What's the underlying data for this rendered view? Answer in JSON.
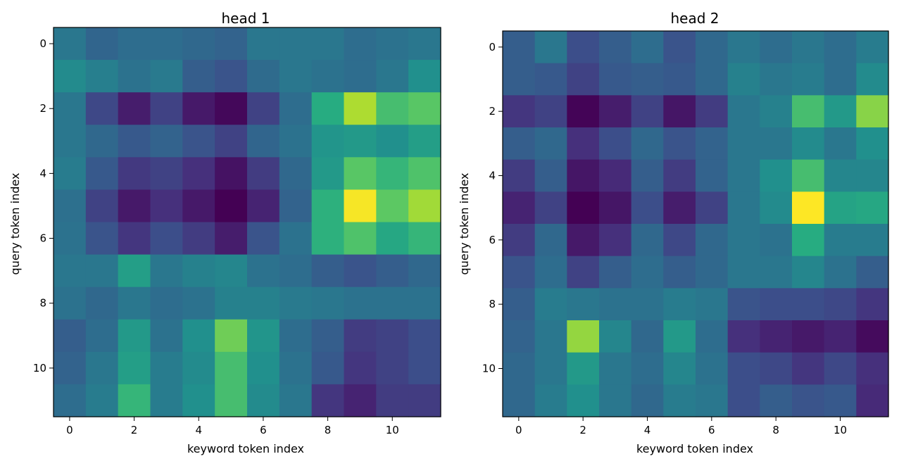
{
  "chart_data": [
    {
      "type": "heatmap",
      "title": "head 1",
      "xlabel": "keyword token index",
      "ylabel": "query token index",
      "xticks": [
        0,
        2,
        4,
        6,
        8,
        10
      ],
      "yticks": [
        0,
        2,
        4,
        6,
        8,
        10
      ],
      "colormap": "viridis",
      "vmin": 0,
      "vmax": 1,
      "values": [
        [
          0.4,
          0.33,
          0.36,
          0.36,
          0.34,
          0.32,
          0.4,
          0.4,
          0.4,
          0.36,
          0.38,
          0.4
        ],
        [
          0.48,
          0.43,
          0.38,
          0.41,
          0.3,
          0.26,
          0.35,
          0.4,
          0.38,
          0.36,
          0.4,
          0.5
        ],
        [
          0.4,
          0.22,
          0.08,
          0.2,
          0.07,
          0.02,
          0.2,
          0.36,
          0.62,
          0.88,
          0.7,
          0.74
        ],
        [
          0.4,
          0.34,
          0.28,
          0.32,
          0.26,
          0.2,
          0.33,
          0.38,
          0.52,
          0.54,
          0.5,
          0.56
        ],
        [
          0.42,
          0.28,
          0.17,
          0.2,
          0.14,
          0.05,
          0.18,
          0.34,
          0.54,
          0.74,
          0.66,
          0.72
        ],
        [
          0.37,
          0.2,
          0.07,
          0.14,
          0.07,
          0.0,
          0.1,
          0.32,
          0.64,
          0.99,
          0.75,
          0.86
        ],
        [
          0.38,
          0.26,
          0.16,
          0.24,
          0.18,
          0.08,
          0.26,
          0.38,
          0.64,
          0.72,
          0.6,
          0.66
        ],
        [
          0.4,
          0.4,
          0.56,
          0.4,
          0.44,
          0.46,
          0.38,
          0.36,
          0.3,
          0.26,
          0.3,
          0.34
        ],
        [
          0.38,
          0.34,
          0.4,
          0.36,
          0.38,
          0.44,
          0.44,
          0.41,
          0.4,
          0.38,
          0.38,
          0.38
        ],
        [
          0.3,
          0.36,
          0.54,
          0.38,
          0.5,
          0.78,
          0.52,
          0.36,
          0.3,
          0.18,
          0.2,
          0.24
        ],
        [
          0.32,
          0.4,
          0.56,
          0.42,
          0.48,
          0.7,
          0.5,
          0.38,
          0.28,
          0.16,
          0.2,
          0.24
        ],
        [
          0.36,
          0.42,
          0.66,
          0.42,
          0.5,
          0.7,
          0.48,
          0.4,
          0.16,
          0.1,
          0.18,
          0.18
        ]
      ]
    },
    {
      "type": "heatmap",
      "title": "head 2",
      "xlabel": "keyword token index",
      "ylabel": "query token index",
      "xticks": [
        0,
        2,
        4,
        6,
        8,
        10
      ],
      "yticks": [
        0,
        2,
        4,
        6,
        8,
        10
      ],
      "colormap": "viridis",
      "vmin": 0,
      "vmax": 1,
      "values": [
        [
          0.3,
          0.4,
          0.24,
          0.3,
          0.36,
          0.26,
          0.34,
          0.4,
          0.36,
          0.4,
          0.36,
          0.42
        ],
        [
          0.3,
          0.28,
          0.2,
          0.28,
          0.3,
          0.28,
          0.34,
          0.44,
          0.4,
          0.42,
          0.36,
          0.48
        ],
        [
          0.16,
          0.2,
          0.01,
          0.08,
          0.2,
          0.06,
          0.18,
          0.4,
          0.44,
          0.7,
          0.54,
          0.82
        ],
        [
          0.3,
          0.34,
          0.14,
          0.24,
          0.34,
          0.26,
          0.32,
          0.4,
          0.4,
          0.48,
          0.4,
          0.5
        ],
        [
          0.18,
          0.3,
          0.06,
          0.12,
          0.3,
          0.18,
          0.32,
          0.4,
          0.5,
          0.7,
          0.46,
          0.46
        ],
        [
          0.1,
          0.2,
          0.0,
          0.06,
          0.24,
          0.08,
          0.2,
          0.4,
          0.48,
          1.0,
          0.58,
          0.6
        ],
        [
          0.18,
          0.34,
          0.07,
          0.14,
          0.34,
          0.22,
          0.34,
          0.4,
          0.38,
          0.62,
          0.42,
          0.42
        ],
        [
          0.26,
          0.36,
          0.2,
          0.3,
          0.36,
          0.3,
          0.34,
          0.4,
          0.4,
          0.46,
          0.38,
          0.3
        ],
        [
          0.3,
          0.42,
          0.4,
          0.38,
          0.38,
          0.42,
          0.4,
          0.26,
          0.24,
          0.24,
          0.22,
          0.16
        ],
        [
          0.32,
          0.4,
          0.84,
          0.46,
          0.34,
          0.54,
          0.36,
          0.14,
          0.1,
          0.07,
          0.1,
          0.03
        ],
        [
          0.34,
          0.4,
          0.54,
          0.4,
          0.36,
          0.46,
          0.38,
          0.24,
          0.22,
          0.16,
          0.22,
          0.14
        ],
        [
          0.34,
          0.42,
          0.5,
          0.4,
          0.34,
          0.42,
          0.4,
          0.24,
          0.3,
          0.26,
          0.28,
          0.12
        ]
      ]
    }
  ]
}
